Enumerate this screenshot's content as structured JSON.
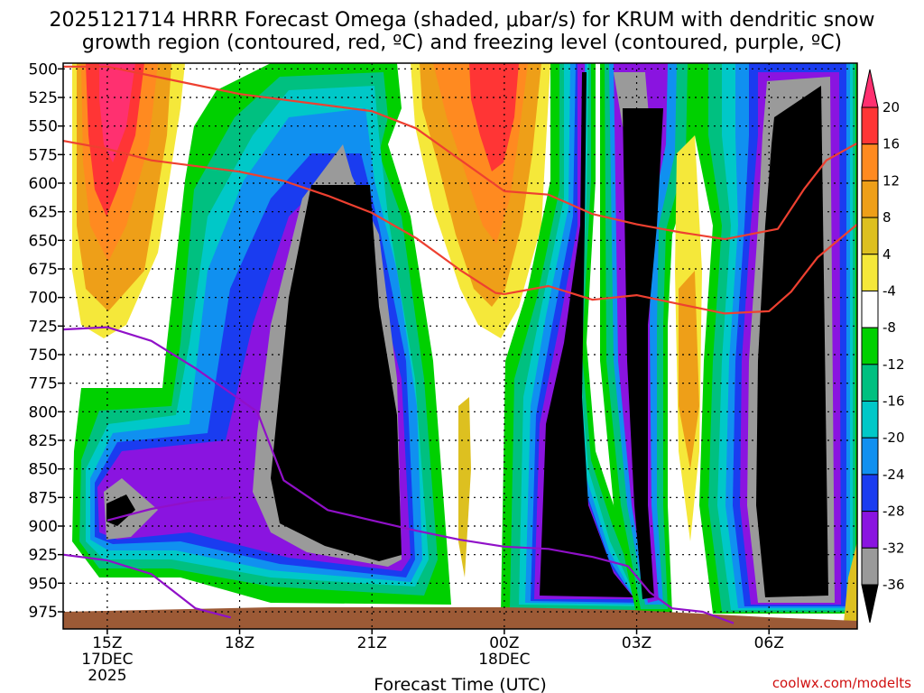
{
  "chart_data": {
    "type": "heatmap",
    "title_line1": "2025121714 HRRR Forecast Omega (shaded, μbar/s) for KRUM with dendritic snow",
    "title_line2": "growth region (contoured, red, ºC) and freezing level (contoured, purple, ºC)",
    "xlabel": "Forecast Time (UTC)",
    "credit": "coolwx.com/modelts",
    "y_ticks": [
      "500",
      "525",
      "550",
      "575",
      "600",
      "625",
      "650",
      "675",
      "700",
      "725",
      "750",
      "775",
      "800",
      "825",
      "850",
      "875",
      "900",
      "925",
      "950",
      "975"
    ],
    "y_values": [
      500,
      525,
      550,
      575,
      600,
      625,
      650,
      675,
      700,
      725,
      750,
      775,
      800,
      825,
      850,
      875,
      900,
      925,
      950,
      975
    ],
    "ylim": [
      495,
      990
    ],
    "x_ticks": [
      {
        "hour": 15,
        "label": "15Z",
        "date": "17DEC",
        "year": "2025"
      },
      {
        "hour": 18,
        "label": "18Z",
        "date": "",
        "year": ""
      },
      {
        "hour": 21,
        "label": "21Z",
        "date": "",
        "year": ""
      },
      {
        "hour": 24,
        "label": "00Z",
        "date": "18DEC",
        "year": ""
      },
      {
        "hour": 27,
        "label": "03Z",
        "date": "",
        "year": ""
      },
      {
        "hour": 30,
        "label": "06Z",
        "date": "",
        "year": ""
      }
    ],
    "xlim": [
      14,
      32
    ],
    "colorbar": {
      "levels": [
        "20",
        "16",
        "12",
        "8",
        "4",
        "-4",
        "-8",
        "-12",
        "-16",
        "-20",
        "-24",
        "-28",
        "-32",
        "-36"
      ],
      "colors": [
        "#ff3070",
        "#ff3535",
        "#ff8a20",
        "#ee9f18",
        "#ddc020",
        "#f5e83a",
        "#ffffff",
        "#00d000",
        "#00c080",
        "#00c8c8",
        "#1090f0",
        "#1a3cf0",
        "#8a14e0",
        "#9a9a9a",
        "#000000"
      ]
    },
    "series": [
      {
        "color": "#ee4030",
        "points": [
          [
            14,
            498
          ],
          [
            15,
            498
          ],
          [
            16.5,
            510
          ],
          [
            18,
            522
          ],
          [
            21,
            537
          ],
          [
            22,
            552
          ],
          [
            24,
            607
          ],
          [
            25,
            610
          ],
          [
            26,
            627
          ],
          [
            27,
            636
          ],
          [
            28,
            643
          ],
          [
            29,
            649
          ],
          [
            30.2,
            640
          ],
          [
            30.8,
            605
          ],
          [
            31.3,
            580
          ],
          [
            32,
            565
          ]
        ]
      },
      {
        "color": "#ee4030",
        "points": [
          [
            14,
            563
          ],
          [
            15,
            570
          ],
          [
            16,
            580
          ],
          [
            18,
            590
          ],
          [
            19,
            598
          ],
          [
            20,
            611
          ],
          [
            21,
            626
          ],
          [
            22,
            648
          ],
          [
            23,
            676
          ],
          [
            23.8,
            696
          ],
          [
            24,
            697
          ],
          [
            25,
            690
          ],
          [
            26,
            702
          ],
          [
            27,
            698
          ],
          [
            28,
            706
          ],
          [
            29,
            714
          ],
          [
            30,
            712
          ],
          [
            30.5,
            695
          ],
          [
            31.1,
            665
          ],
          [
            32,
            636
          ]
        ]
      },
      {
        "color": "#9010c8",
        "points": [
          [
            14,
            728
          ],
          [
            15,
            726
          ],
          [
            16,
            738
          ],
          [
            17,
            762
          ],
          [
            18.4,
            800
          ],
          [
            19,
            860
          ],
          [
            20,
            886
          ],
          [
            21,
            895
          ],
          [
            22,
            904
          ],
          [
            23,
            912
          ],
          [
            24,
            918
          ],
          [
            25,
            920
          ],
          [
            26,
            927
          ],
          [
            26.8,
            935
          ],
          [
            27.3,
            958
          ],
          [
            27.8,
            972
          ],
          [
            28.5,
            975
          ],
          [
            29.2,
            985
          ]
        ]
      },
      {
        "color": "#9010c8",
        "points": [
          [
            14,
            925
          ],
          [
            15,
            930
          ],
          [
            16,
            942
          ],
          [
            17,
            972
          ],
          [
            17.8,
            980
          ]
        ]
      },
      {
        "color": "#9010c8",
        "points": [
          [
            15,
            895
          ],
          [
            16,
            885
          ],
          [
            17,
            878
          ],
          [
            17.8,
            875
          ]
        ]
      }
    ]
  }
}
